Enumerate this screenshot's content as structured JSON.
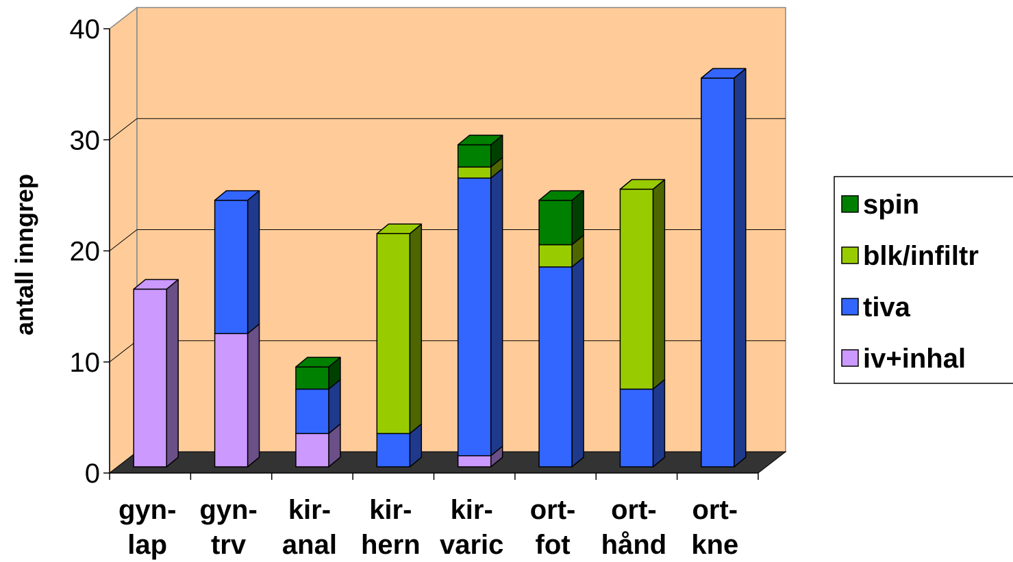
{
  "chart_data": {
    "type": "bar",
    "stacked": true,
    "style": "3d",
    "ylabel": "antall inngrep",
    "xlabel": "",
    "title": "",
    "ylim": [
      0,
      40
    ],
    "yticks": [
      0,
      10,
      20,
      30,
      40
    ],
    "grid": true,
    "legend_position": "right",
    "categories": [
      [
        "gyn-",
        "lap"
      ],
      [
        "gyn-",
        "trv"
      ],
      [
        "kir-",
        "anal"
      ],
      [
        "kir-",
        "hern"
      ],
      [
        "kir-",
        "varic"
      ],
      [
        "ort-",
        "fot"
      ],
      [
        "ort-",
        "hånd"
      ],
      [
        "ort-",
        "kne"
      ]
    ],
    "series": [
      {
        "name": "iv+inhal",
        "color": "#cc99ff",
        "side": "#6b4f87",
        "values": [
          16,
          12,
          3,
          0,
          1,
          0,
          0,
          0
        ]
      },
      {
        "name": "tiva",
        "color": "#3366ff",
        "side": "#1f3a8c",
        "values": [
          0,
          12,
          4,
          3,
          25,
          18,
          7,
          35
        ]
      },
      {
        "name": "blk/infiltr",
        "color": "#99cc00",
        "side": "#4d6600",
        "values": [
          0,
          0,
          0,
          18,
          1,
          2,
          18,
          0
        ]
      },
      {
        "name": "spin",
        "color": "#008000",
        "side": "#004000",
        "values": [
          0,
          0,
          2,
          0,
          2,
          4,
          0,
          0
        ]
      }
    ],
    "colors": {
      "wall": "#ffcc99",
      "floor": "#333333",
      "gridline": "#000000"
    }
  }
}
